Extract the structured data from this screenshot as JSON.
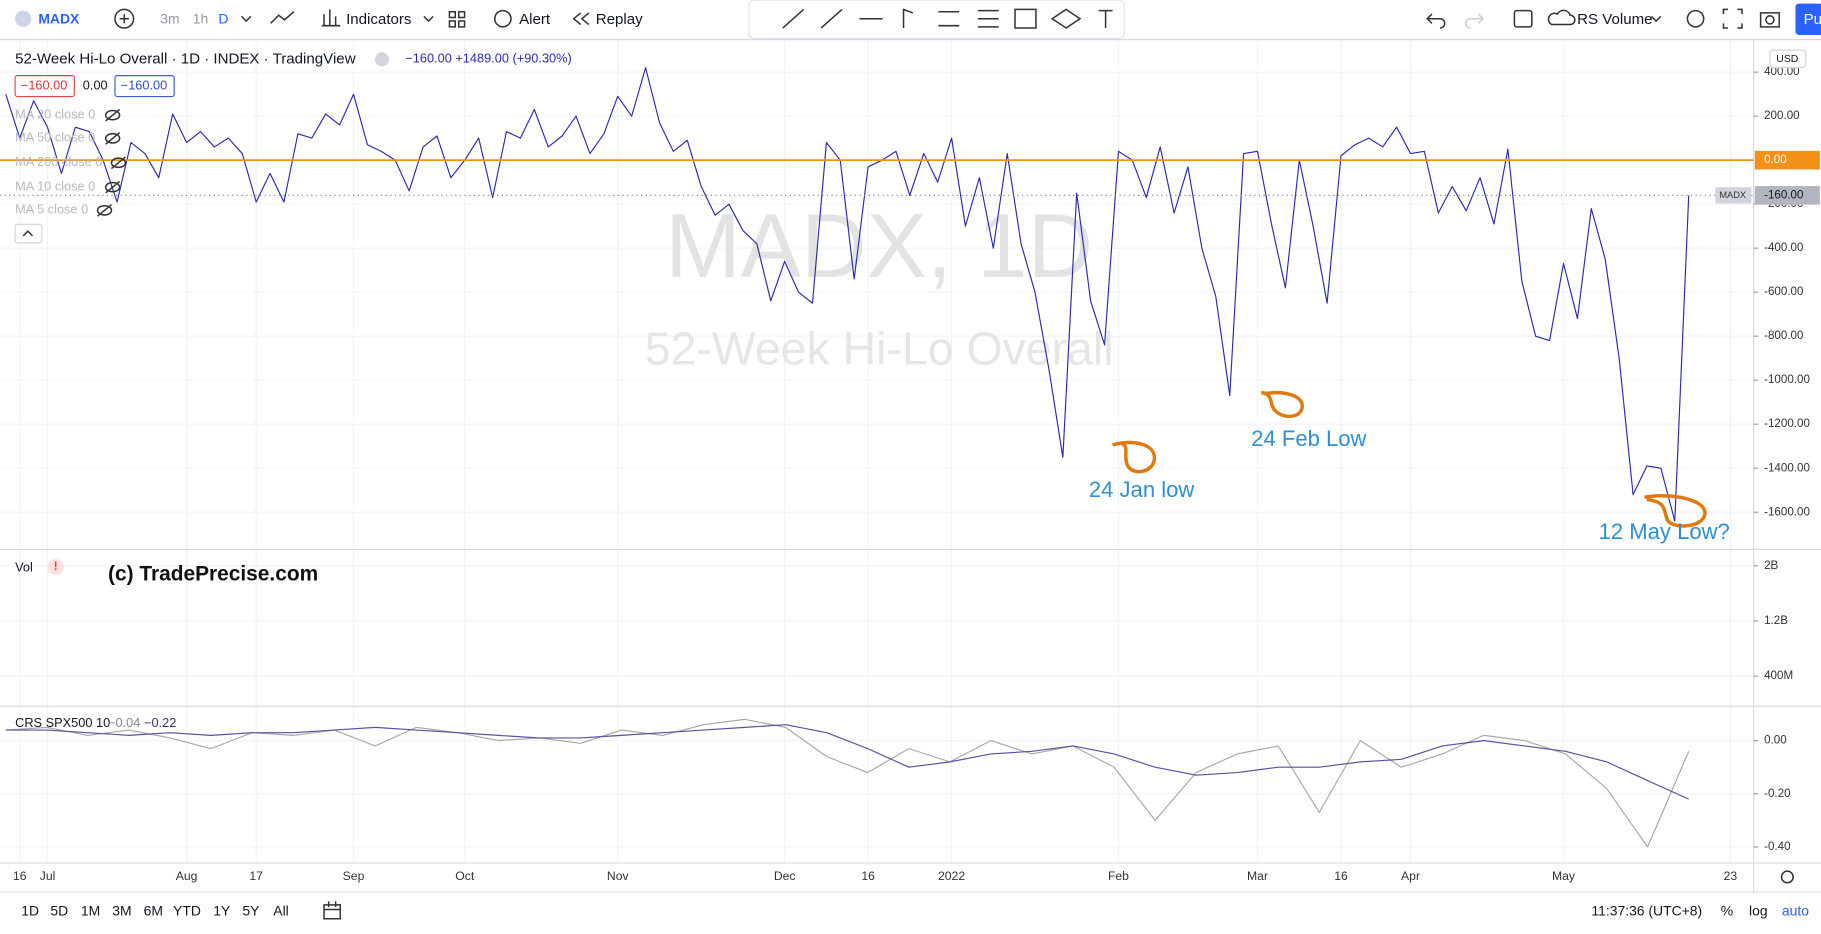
{
  "toolbar": {
    "symbol": "MADX",
    "intervals": [
      "3m",
      "1h",
      "D"
    ],
    "buttons": [
      "Indicators",
      "Alert",
      "Replay"
    ],
    "rs_volume": "RS Volume",
    "publish": "Pu"
  },
  "legend": {
    "change": "−160.00 +1489.00 (+90.30%)",
    "sell": "−160.00",
    "spread": "0.00",
    "buy": "−160.00",
    "mas": [
      "MA 20 close 0",
      "MA 50 close 0",
      "MA 200 close 0",
      "MA 10 close 0",
      "MA 5 close 0"
    ]
  },
  "watermark": {
    "symbol": "MADX, 1D",
    "name": "52-Week Hi-Lo Overall"
  },
  "currency": "USD",
  "copyright": "(c) TradePrecise.com",
  "annotations": [
    "24 Jan low",
    "24 Feb Low",
    "12 May Low?"
  ],
  "chart_data": [
    {
      "type": "line",
      "title": "52-Week Hi-Lo Overall · 1D · INDEX · TradingView",
      "categories": [
        null,
        "16",
        null,
        "Jul",
        null,
        null,
        null,
        null,
        null,
        null,
        null,
        null,
        null,
        "Aug",
        null,
        null,
        null,
        null,
        "17",
        null,
        null,
        null,
        null,
        null,
        null,
        "Sep",
        null,
        null,
        null,
        null,
        null,
        null,
        null,
        "Oct",
        null,
        null,
        null,
        null,
        null,
        null,
        null,
        null,
        null,
        null,
        "Nov",
        null,
        null,
        null,
        null,
        null,
        null,
        null,
        null,
        null,
        null,
        null,
        "Dec",
        null,
        null,
        null,
        null,
        null,
        "16",
        null,
        null,
        null,
        null,
        null,
        "2022",
        null,
        null,
        null,
        null,
        null,
        null,
        null,
        null,
        null,
        null,
        null,
        "Feb",
        null,
        null,
        null,
        null,
        null,
        null,
        null,
        null,
        null,
        "Mar",
        null,
        null,
        null,
        null,
        null,
        "16",
        null,
        null,
        null,
        null,
        "Apr",
        null,
        null,
        null,
        null,
        null,
        null,
        null,
        null,
        null,
        null,
        "May",
        null,
        null,
        null,
        null,
        null,
        null,
        null,
        null,
        null,
        null,
        null,
        "23"
      ],
      "series": [
        {
          "name": "MADX",
          "color": "#2b2bb0",
          "values": [
            300,
            100,
            270,
            150,
            -60,
            150,
            130,
            0,
            -190,
            80,
            30,
            -80,
            210,
            80,
            130,
            60,
            100,
            30,
            -190,
            -60,
            -190,
            120,
            100,
            210,
            160,
            300,
            70,
            40,
            0,
            -140,
            60,
            110,
            -80,
            0,
            100,
            -170,
            130,
            100,
            230,
            60,
            110,
            200,
            30,
            120,
            290,
            200,
            420,
            170,
            40,
            90,
            -120,
            -250,
            -200,
            -320,
            -380,
            -640,
            -460,
            -600,
            -650,
            80,
            0,
            -540,
            -30,
            0,
            40,
            -160,
            30,
            -100,
            100,
            -300,
            -80,
            -400,
            30,
            -380,
            -600,
            -950,
            -1350,
            -150,
            -640,
            -840,
            40,
            0,
            -170,
            60,
            -240,
            -30,
            -400,
            -620,
            -1070,
            30,
            40,
            -290,
            -580,
            0,
            -300,
            -650,
            20,
            70,
            100,
            60,
            150,
            30,
            40,
            -240,
            -120,
            -230,
            -80,
            -290,
            50,
            -550,
            -800,
            -820,
            -470,
            -720,
            -220,
            -450,
            -900,
            -1520,
            -1390,
            -1400,
            -1640,
            -160,
            null,
            null,
            null
          ]
        }
      ],
      "ylim": [
        -1764,
        532
      ],
      "yticks": [
        {
          "value": 400,
          "label": "400.00"
        },
        {
          "value": 200,
          "label": "200.00"
        },
        {
          "value": -200,
          "label": "-200.00"
        },
        {
          "value": -400,
          "label": "-400.00"
        },
        {
          "value": -600,
          "label": "-600.00"
        },
        {
          "value": -800,
          "label": "-800.00"
        },
        {
          "value": -1000,
          "label": "-1000.00"
        },
        {
          "value": -1200,
          "label": "-1200.00"
        },
        {
          "value": -1400,
          "label": "-1400.00"
        },
        {
          "value": -1600,
          "label": "-1600.00"
        }
      ],
      "hline": {
        "value": 0,
        "label": "0.00",
        "color": "#f29018"
      },
      "last_price": {
        "value": -160,
        "label": "-160.00"
      },
      "grid": true
    },
    {
      "type": "bar",
      "title": "Vol",
      "ylim": [
        -20000000,
        2170000000
      ],
      "yticks": [
        {
          "value": 2000000000,
          "label": "2B"
        },
        {
          "value": 1200000000,
          "label": "1.2B"
        },
        {
          "value": 400000000,
          "label": "400M"
        }
      ]
    },
    {
      "type": "line",
      "title": "CRS SPX500 10",
      "ylim": [
        -0.456,
        0.112
      ],
      "yticks": [
        {
          "value": 0,
          "label": "0.00"
        },
        {
          "value": -0.2,
          "label": "-0.20"
        },
        {
          "value": -0.4,
          "label": "-0.40"
        }
      ],
      "legend_values": [
        {
          "value": -0.04,
          "label": "−0.04"
        },
        {
          "value": -0.22,
          "label": "−0.22"
        }
      ],
      "series": [
        {
          "color": "#a8a8a8",
          "values": [
            0.04,
            0.05,
            0.02,
            0.04,
            0.01,
            -0.03,
            0.03,
            0.02,
            0.04,
            -0.02,
            0.05,
            0.03,
            0.0,
            0.01,
            -0.01,
            0.04,
            0.02,
            0.06,
            0.08,
            0.05,
            -0.06,
            -0.12,
            -0.03,
            -0.08,
            0.0,
            -0.05,
            -0.02,
            -0.1,
            -0.3,
            -0.12,
            -0.05,
            -0.02,
            -0.27,
            0.0,
            -0.1,
            -0.05,
            0.02,
            0.0,
            -0.05,
            -0.18,
            -0.4,
            -0.04
          ]
        },
        {
          "color": "#5a4fa8",
          "values": [
            0.04,
            0.04,
            0.03,
            0.02,
            0.03,
            0.02,
            0.03,
            0.03,
            0.04,
            0.05,
            0.04,
            0.03,
            0.02,
            0.01,
            0.01,
            0.02,
            0.03,
            0.04,
            0.05,
            0.06,
            0.03,
            -0.03,
            -0.1,
            -0.08,
            -0.05,
            -0.04,
            -0.02,
            -0.05,
            -0.1,
            -0.13,
            -0.12,
            -0.1,
            -0.1,
            -0.08,
            -0.07,
            -0.02,
            0.0,
            -0.02,
            -0.04,
            -0.08,
            -0.15,
            -0.22
          ]
        }
      ]
    }
  ],
  "bottom_bar": {
    "ranges": [
      "1D",
      "5D",
      "1M",
      "3M",
      "6M",
      "YTD",
      "1Y",
      "5Y",
      "All"
    ],
    "time": "11:37:36 (UTC+8)",
    "options": [
      "%",
      "log",
      "auto"
    ]
  }
}
